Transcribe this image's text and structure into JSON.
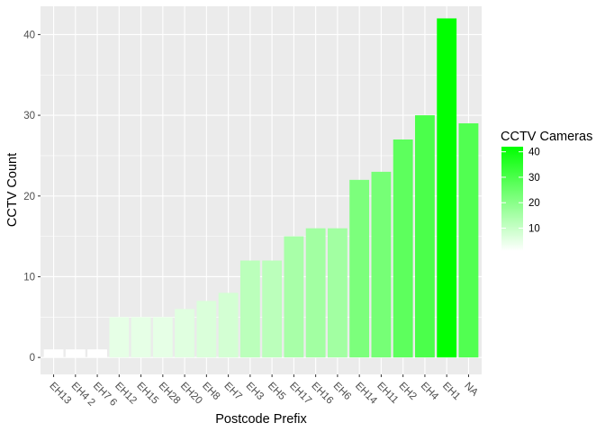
{
  "chart_data": {
    "type": "bar",
    "xlabel": "Postcode Prefix",
    "ylabel": "CCTV Count",
    "ylim": [
      -2.1,
      43.5
    ],
    "yticks": [
      0,
      10,
      20,
      30,
      40
    ],
    "grid": true,
    "categories": [
      "EH13",
      "EH4 2",
      "EH7 6",
      "EH12",
      "EH15",
      "EH28",
      "EH20",
      "EH8",
      "EH7",
      "EH3",
      "EH5",
      "EH17",
      "EH16",
      "EH6",
      "EH14",
      "EH11",
      "EH2",
      "EH4",
      "EH1",
      "NA"
    ],
    "values": [
      1,
      1,
      1,
      5,
      5,
      5,
      6,
      7,
      8,
      12,
      12,
      15,
      16,
      16,
      22,
      23,
      27,
      30,
      42,
      29
    ],
    "legend": {
      "title": "CCTV Cameras",
      "position": "right",
      "breaks": [
        10,
        20,
        30,
        40
      ],
      "range": [
        1,
        42
      ],
      "colors": {
        "low": "#ffffff",
        "high": "#00ff00"
      }
    },
    "panel_background": "#ebebeb",
    "grid_color": "#ffffff"
  }
}
